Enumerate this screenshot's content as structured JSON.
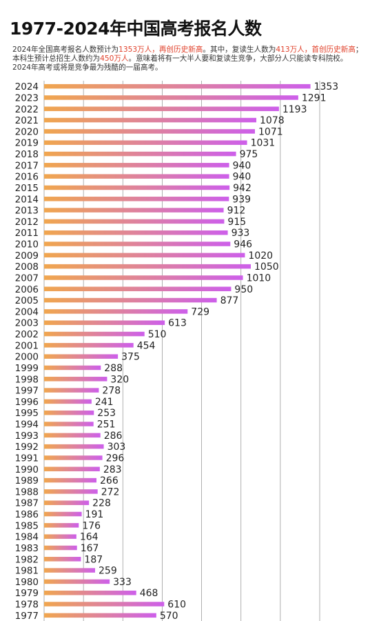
{
  "header": {
    "title": "1977-2024年中国高考报名人数",
    "desc_parts": [
      {
        "text": "2024年全国高考报名人数预计为",
        "highlight": false
      },
      {
        "text": "1353万人，再创历史新高",
        "highlight": true
      },
      {
        "text": "。其中，复读生人数为",
        "highlight": false
      },
      {
        "text": "413万人，首创历史新高",
        "highlight": true
      },
      {
        "text": "；本科生预计总招生人数约为",
        "highlight": false
      },
      {
        "text": "450万人",
        "highlight": true
      },
      {
        "text": "。意味着将有一大半人要和复读生竞争，大部分人只能读专科院校。2024年高考或将是竞争最为残酷的一届高考。",
        "highlight": false
      }
    ]
  },
  "colors": {
    "bar_start": "#f0a64e",
    "bar_end": "#cd5fea",
    "grid": "#9a9a9a",
    "highlight_text": "#e0402a"
  },
  "chart_data": {
    "type": "bar",
    "orientation": "horizontal",
    "categories": [
      "2024",
      "2023",
      "2022",
      "2021",
      "2020",
      "2019",
      "2018",
      "2017",
      "2016",
      "2015",
      "2014",
      "2013",
      "2012",
      "2011",
      "2010",
      "2009",
      "2008",
      "2007",
      "2006",
      "2005",
      "2004",
      "2003",
      "2002",
      "2001",
      "2000",
      "1999",
      "1998",
      "1997",
      "1996",
      "1995",
      "1994",
      "1993",
      "1992",
      "1991",
      "1990",
      "1989",
      "1988",
      "1987",
      "1986",
      "1985",
      "1984",
      "1983",
      "1982",
      "1981",
      "1980",
      "1979",
      "1978",
      "1977"
    ],
    "values": [
      1353,
      1291,
      1193,
      1078,
      1071,
      1031,
      975,
      940,
      940,
      942,
      939,
      912,
      915,
      933,
      946,
      1020,
      1050,
      1010,
      950,
      877,
      729,
      613,
      510,
      454,
      375,
      288,
      320,
      278,
      241,
      253,
      251,
      286,
      303,
      296,
      283,
      266,
      272,
      228,
      191,
      176,
      164,
      167,
      187,
      259,
      333,
      468,
      610,
      570
    ],
    "xlim": [
      0,
      1400
    ],
    "grid": true
  }
}
